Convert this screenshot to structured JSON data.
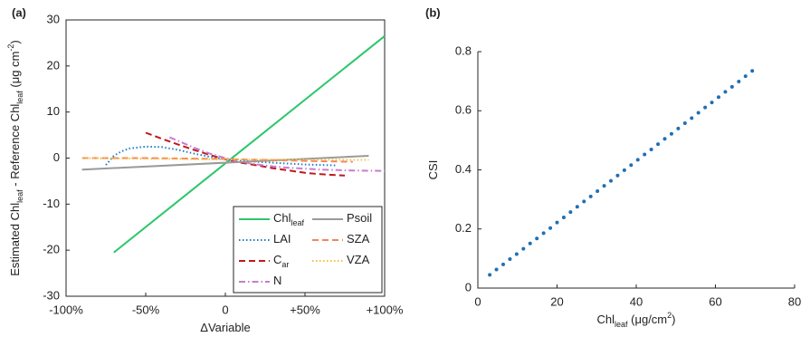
{
  "chart_data": [
    {
      "type": "line",
      "panel_label": "(a)",
      "xlabel": [
        {
          "text": "ΔVariable"
        }
      ],
      "ylabel": [
        {
          "text": "Estimated Chl"
        },
        {
          "text": "leaf",
          "shift": "sub"
        },
        {
          "text": " - Reference Chl"
        },
        {
          "text": "leaf",
          "shift": "sub"
        },
        {
          "text": " (μg cm"
        },
        {
          "text": "-2",
          "shift": "sup"
        },
        {
          "text": ")"
        }
      ],
      "xlim": [
        -100,
        100
      ],
      "xticks": [
        {
          "value": -100,
          "label": "-100%"
        },
        {
          "value": -50,
          "label": "-50%"
        },
        0,
        {
          "value": 50,
          "label": "+50%"
        },
        {
          "value": 100,
          "label": "+100%"
        }
      ],
      "ylim": [
        -30,
        30
      ],
      "yticks": [
        -30,
        -20,
        -10,
        0,
        10,
        20,
        30
      ],
      "box": true,
      "legend": "lower right",
      "series": [
        {
          "name": "Chl",
          "name_sub": "leaf",
          "color": "#2cc66c",
          "dash": "solid",
          "x": [
            -70,
            100
          ],
          "values": [
            -20.5,
            26.5
          ]
        },
        {
          "name": "LAI",
          "color": "#1f7fc1",
          "dash": "dotted",
          "x": [
            -75,
            -70,
            -65,
            -60,
            -50,
            -40,
            -30,
            -20,
            -10,
            0,
            10,
            20,
            30,
            40,
            50,
            60,
            70
          ],
          "values": [
            -1.5,
            0.5,
            1.5,
            2.1,
            2.5,
            2.4,
            1.8,
            1.0,
            0.3,
            -0.3,
            -0.6,
            -0.8,
            -1.0,
            -1.2,
            -1.4,
            -1.5,
            -1.6
          ]
        },
        {
          "name": "C",
          "name_sub": "ar",
          "color": "#c0191c",
          "dash": "dashed",
          "x": [
            -50,
            -40,
            -30,
            -20,
            -10,
            0,
            10,
            20,
            30,
            40,
            50,
            60,
            75
          ],
          "values": [
            5.5,
            4.2,
            3.0,
            1.8,
            0.7,
            -0.3,
            -1.0,
            -1.6,
            -2.2,
            -2.7,
            -3.2,
            -3.5,
            -3.8
          ]
        },
        {
          "name": "N",
          "color": "#c77cd0",
          "dash": "dashdot",
          "x": [
            -35,
            -30,
            -20,
            -10,
            0,
            10,
            20,
            30,
            40,
            60,
            80,
            100
          ],
          "values": [
            4.5,
            3.8,
            2.3,
            1.0,
            0,
            -0.8,
            -1.4,
            -1.8,
            -2.1,
            -2.5,
            -2.7,
            -2.8
          ]
        },
        {
          "name": "Psoil",
          "color": "#9a9a9a",
          "dash": "solid",
          "x": [
            -90,
            90
          ],
          "values": [
            -2.5,
            0.5
          ]
        },
        {
          "name": "SZA",
          "color": "#f4845f",
          "dash": "dashed",
          "x": [
            -90,
            -50,
            0,
            50,
            80
          ],
          "values": [
            0,
            0,
            -0.2,
            -0.6,
            -0.8
          ]
        },
        {
          "name": "VZA",
          "color": "#f2c23e",
          "dash": "dotted",
          "x": [
            -90,
            0,
            90
          ],
          "values": [
            0,
            -0.3,
            -0.4
          ]
        }
      ]
    },
    {
      "type": "scatter",
      "panel_label": "(b)",
      "xlabel": [
        {
          "text": "Chl"
        },
        {
          "text": "leaf",
          "shift": "sub"
        },
        {
          "text": " (μg/cm"
        },
        {
          "text": "2",
          "shift": "sup"
        },
        {
          "text": ")"
        }
      ],
      "ylabel": [
        {
          "text": "CSI"
        }
      ],
      "xlim": [
        0,
        80
      ],
      "xticks": [
        0,
        20,
        40,
        60,
        80
      ],
      "ylim": [
        0,
        0.8
      ],
      "yticks": [
        0,
        0.2,
        0.4,
        0.6,
        0.8
      ],
      "box": false,
      "color": "#1f6fb5",
      "x": [
        3,
        4.7,
        6.4,
        8.1,
        9.8,
        11.5,
        13.2,
        14.9,
        16.6,
        18.3,
        20,
        21.7,
        23.4,
        25.1,
        26.8,
        28.5,
        30.2,
        31.9,
        33.6,
        35.3,
        37,
        38.7,
        40.4,
        42.1,
        43.8,
        45.5,
        47.2,
        48.9,
        50.6,
        52.3,
        54,
        55.7,
        57.4,
        59.1,
        60.8,
        62.5,
        64.2,
        65.9,
        67.6,
        69.3
      ],
      "values": [
        0.045,
        0.063,
        0.08,
        0.098,
        0.115,
        0.133,
        0.151,
        0.168,
        0.186,
        0.203,
        0.222,
        0.239,
        0.257,
        0.275,
        0.293,
        0.31,
        0.328,
        0.346,
        0.363,
        0.381,
        0.399,
        0.416,
        0.434,
        0.452,
        0.469,
        0.487,
        0.505,
        0.522,
        0.54,
        0.558,
        0.575,
        0.593,
        0.611,
        0.628,
        0.646,
        0.664,
        0.681,
        0.699,
        0.717,
        0.735
      ]
    }
  ]
}
